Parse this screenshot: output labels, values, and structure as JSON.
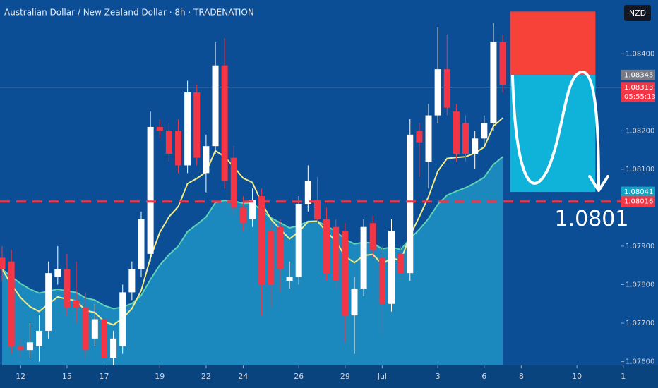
{
  "chart_data": {
    "type": "candlestick",
    "title": "Australian Dollar / New Zealand Dollar · 8h · TRADENATION",
    "currency": "NZD",
    "up_color": "#ffffff",
    "down_color": "#f23645",
    "candles": {
      "open": [
        1.0787,
        1.0786,
        1.0764,
        1.0763,
        1.0764,
        1.0768,
        1.0782,
        1.0784,
        1.0776,
        1.0774,
        1.0766,
        1.0771,
        1.0761,
        1.0764,
        1.0778,
        1.0784,
        1.0788,
        1.0821,
        1.082,
        1.082,
        1.0811,
        1.083,
        1.0809,
        1.0816,
        1.0837,
        1.0813,
        1.08,
        1.0797,
        1.0803,
        1.0794,
        1.0795,
        1.0781,
        1.0782,
        1.0801,
        1.0802,
        1.0797,
        1.0795,
        1.0794,
        1.0772,
        1.0779,
        1.0796,
        1.0787,
        1.0775,
        1.0788,
        1.0783,
        1.082,
        1.0812,
        1.0824,
        1.0836,
        1.0825,
        1.0822,
        1.0814,
        1.0818,
        1.0822,
        1.0843
      ],
      "high": [
        1.079,
        1.0789,
        1.0766,
        1.077,
        1.0772,
        1.0786,
        1.079,
        1.0788,
        1.0786,
        1.0778,
        1.0775,
        1.0773,
        1.0768,
        1.078,
        1.0786,
        1.0799,
        1.0825,
        1.0823,
        1.0822,
        1.0823,
        1.0833,
        1.0832,
        1.0819,
        1.0843,
        1.0844,
        1.0816,
        1.0803,
        1.0805,
        1.0805,
        1.0796,
        1.0797,
        1.0786,
        1.0803,
        1.0811,
        1.0808,
        1.08,
        1.0797,
        1.0796,
        1.0782,
        1.0797,
        1.0798,
        1.079,
        1.0797,
        1.079,
        1.0823,
        1.0822,
        1.0827,
        1.0847,
        1.0845,
        1.0827,
        1.0824,
        1.082,
        1.0824,
        1.0848,
        1.0845
      ],
      "low": [
        1.0781,
        1.0762,
        1.0761,
        1.0761,
        1.076,
        1.0766,
        1.078,
        1.0772,
        1.077,
        1.0761,
        1.0764,
        1.0758,
        1.0758,
        1.0762,
        1.0776,
        1.0782,
        1.0786,
        1.0818,
        1.0812,
        1.0809,
        1.0809,
        1.0811,
        1.0804,
        1.0814,
        1.0805,
        1.0798,
        1.0794,
        1.0795,
        1.0772,
        1.0774,
        1.0778,
        1.0779,
        1.078,
        1.0799,
        1.0795,
        1.0781,
        1.0779,
        1.0765,
        1.0762,
        1.0777,
        1.0787,
        1.0767,
        1.0773,
        1.0781,
        1.0781,
        1.0808,
        1.0805,
        1.0822,
        1.0824,
        1.0812,
        1.0812,
        1.081,
        1.0816,
        1.082,
        1.083
      ],
      "close": [
        1.0784,
        1.0764,
        1.0763,
        1.0765,
        1.0768,
        1.0783,
        1.0784,
        1.0774,
        1.0774,
        1.0763,
        1.0771,
        1.0761,
        1.0766,
        1.0778,
        1.0784,
        1.0797,
        1.0821,
        1.082,
        1.0814,
        1.0811,
        1.083,
        1.0813,
        1.0816,
        1.0837,
        1.0807,
        1.08,
        1.0796,
        1.0802,
        1.078,
        1.078,
        1.0784,
        1.0782,
        1.0801,
        1.0807,
        1.0797,
        1.0783,
        1.0781,
        1.0772,
        1.0779,
        1.0795,
        1.0789,
        1.0775,
        1.0794,
        1.0783,
        1.0819,
        1.0817,
        1.0824,
        1.0836,
        1.0826,
        1.0814,
        1.0814,
        1.0818,
        1.0822,
        1.0843,
        1.0832
      ]
    },
    "xlim": [
      -0.23,
      70.75
    ],
    "xticks": [
      {
        "value": 2,
        "label": "12"
      },
      {
        "value": 7,
        "label": "15"
      },
      {
        "value": 11,
        "label": "17"
      },
      {
        "value": 17,
        "label": "19"
      },
      {
        "value": 22,
        "label": "22"
      },
      {
        "value": 26,
        "label": "24"
      },
      {
        "value": 32,
        "label": "26"
      },
      {
        "value": 37,
        "label": "29"
      },
      {
        "value": 41,
        "label": "Jul"
      },
      {
        "value": 47,
        "label": "3"
      },
      {
        "value": 52,
        "label": "6"
      },
      {
        "value": 56,
        "label": "8"
      },
      {
        "value": 62,
        "label": "10"
      },
      {
        "value": 67,
        "label": "1"
      }
    ],
    "ylim": [
      1.0759,
      1.0854
    ],
    "yticks": [
      {
        "value": 1.076,
        "label": "1.07600"
      },
      {
        "value": 1.077,
        "label": "1.07700"
      },
      {
        "value": 1.078,
        "label": "1.07800"
      },
      {
        "value": 1.079,
        "label": "1.07900"
      },
      {
        "value": 1.081,
        "label": "1.08100"
      },
      {
        "value": 1.082,
        "label": "1.08200"
      },
      {
        "value": 1.084,
        "label": "1.08400"
      }
    ],
    "level": 1.08016,
    "annotation": 1.0801,
    "last_price": {
      "value": 1.08313,
      "countdown": "05:55:13"
    },
    "position": {
      "stop": 1.0851,
      "entry": 1.08345,
      "target": 1.08041,
      "start": 54.8,
      "end": 64.0
    }
  }
}
